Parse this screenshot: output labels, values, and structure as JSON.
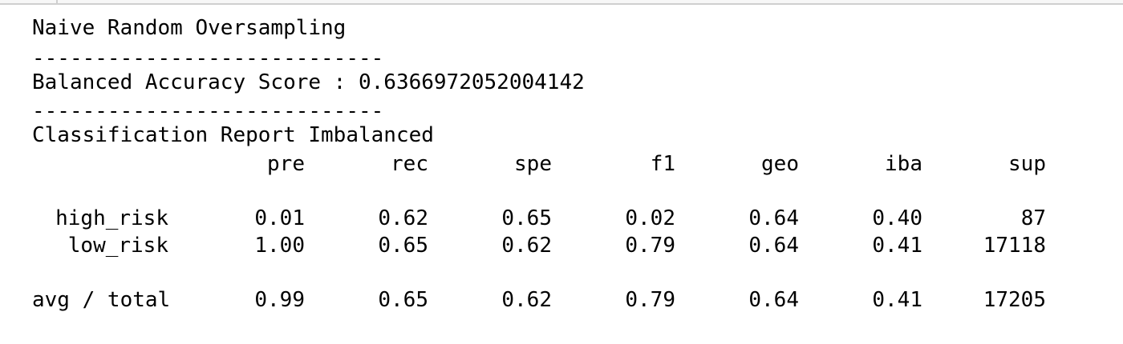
{
  "output": {
    "title": "Naive Random Oversampling",
    "separator": "----------------------------",
    "score_line": "Balanced Accuracy Score : 0.6366972052004142",
    "report_title": "Classification Report Imbalanced",
    "columns": [
      "pre",
      "rec",
      "spe",
      "f1",
      "geo",
      "iba",
      "sup"
    ],
    "rows": [
      {
        "label": "high_risk",
        "values": [
          "0.01",
          "0.62",
          "0.65",
          "0.02",
          "0.64",
          "0.40",
          "87"
        ]
      },
      {
        "label": "low_risk",
        "values": [
          "1.00",
          "0.65",
          "0.62",
          "0.79",
          "0.64",
          "0.41",
          "17118"
        ]
      }
    ],
    "total": {
      "label": "avg / total",
      "values": [
        "0.99",
        "0.65",
        "0.62",
        "0.79",
        "0.64",
        "0.41",
        "17205"
      ]
    }
  }
}
